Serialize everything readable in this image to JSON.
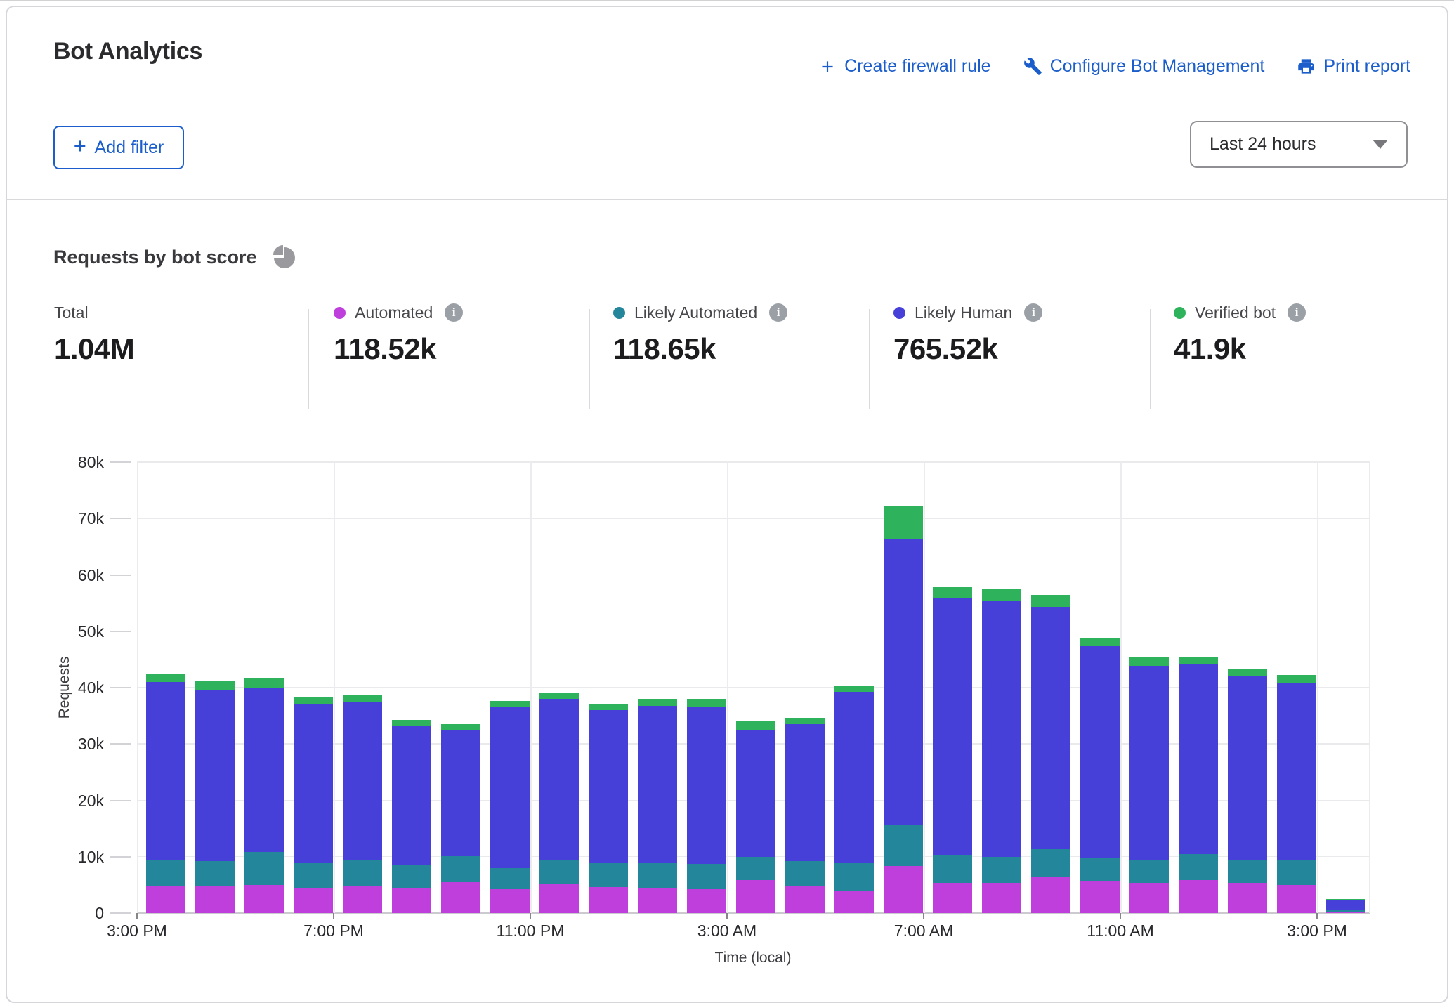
{
  "header": {
    "title": "Bot Analytics",
    "actions": [
      {
        "label": "Create firewall rule",
        "icon": "plus-icon"
      },
      {
        "label": "Configure Bot Management",
        "icon": "wrench-icon"
      },
      {
        "label": "Print report",
        "icon": "printer-icon"
      }
    ]
  },
  "filters": {
    "add_filter_label": "Add filter",
    "time_range_value": "Last 24 hours"
  },
  "section": {
    "title": "Requests by bot score"
  },
  "stats": {
    "total": {
      "label": "Total",
      "value": "1.04M"
    },
    "series": [
      {
        "label": "Automated",
        "value": "118.52k",
        "color": "#bf3fdc"
      },
      {
        "label": "Likely Automated",
        "value": "118.65k",
        "color": "#24869b"
      },
      {
        "label": "Likely Human",
        "value": "765.52k",
        "color": "#4740d8"
      },
      {
        "label": "Verified bot",
        "value": "41.9k",
        "color": "#2eb35c"
      }
    ]
  },
  "colors": {
    "accent_blue": "#1b5ecb",
    "automated": "#bf3fdc",
    "likely_automated": "#24869b",
    "likely_human": "#4740d8",
    "verified_bot": "#2eb35c"
  },
  "chart_data": {
    "type": "bar",
    "stacked": true,
    "title": "Requests by bot score",
    "xlabel": "Time (local)",
    "ylabel": "Requests",
    "unit": "k",
    "ylim": [
      0,
      80
    ],
    "y_ticks": [
      0,
      10,
      20,
      30,
      40,
      50,
      60,
      70,
      80
    ],
    "x_tick_every": 4,
    "grid": true,
    "categories": [
      "3:00 PM",
      "4:00 PM",
      "5:00 PM",
      "6:00 PM",
      "7:00 PM",
      "8:00 PM",
      "9:00 PM",
      "10:00 PM",
      "11:00 PM",
      "12:00 AM",
      "1:00 AM",
      "2:00 AM",
      "3:00 AM",
      "4:00 AM",
      "5:00 AM",
      "6:00 AM",
      "7:00 AM",
      "8:00 AM",
      "9:00 AM",
      "10:00 AM",
      "11:00 AM",
      "12:00 PM",
      "1:00 PM",
      "2:00 PM",
      "3:00 PM"
    ],
    "series": [
      {
        "name": "Automated",
        "color": "#bf3fdc",
        "values": [
          4.7,
          4.7,
          5.0,
          4.5,
          4.7,
          4.5,
          5.5,
          4.3,
          5.1,
          4.6,
          4.5,
          4.3,
          5.8,
          4.8,
          4.0,
          8.4,
          5.3,
          5.3,
          6.4,
          5.6,
          5.3,
          5.8,
          5.3,
          5.0,
          0.3
        ]
      },
      {
        "name": "Likely Automated",
        "color": "#24869b",
        "values": [
          4.6,
          4.5,
          5.9,
          4.5,
          4.6,
          4.0,
          4.6,
          3.7,
          4.4,
          4.2,
          4.5,
          4.4,
          4.2,
          4.4,
          4.8,
          7.2,
          5.0,
          4.7,
          4.9,
          4.1,
          4.2,
          4.7,
          4.2,
          4.3,
          0.3
        ]
      },
      {
        "name": "Likely Human",
        "color": "#4740d8",
        "values": [
          31.7,
          30.4,
          29.0,
          28.0,
          28.1,
          24.7,
          22.3,
          28.5,
          28.5,
          27.2,
          27.8,
          27.9,
          22.5,
          24.3,
          30.5,
          50.7,
          45.7,
          45.4,
          43.0,
          37.7,
          34.4,
          33.7,
          32.6,
          31.6,
          1.8
        ]
      },
      {
        "name": "Verified bot",
        "color": "#2eb35c",
        "values": [
          1.5,
          1.5,
          1.7,
          1.3,
          1.4,
          1.1,
          1.1,
          1.1,
          1.1,
          1.1,
          1.2,
          1.4,
          1.5,
          1.2,
          1.1,
          5.8,
          1.8,
          2.0,
          2.1,
          1.4,
          1.5,
          1.3,
          1.2,
          1.3,
          0.1
        ]
      }
    ]
  }
}
